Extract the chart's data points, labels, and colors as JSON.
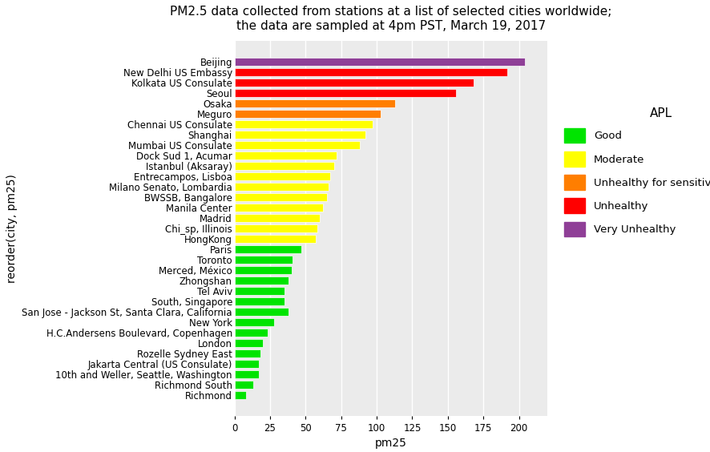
{
  "title": "PM2.5 data collected from stations at a list of selected cities worldwide;\nthe data are sampled at 4pm PST, March 19, 2017",
  "xlabel": "pm25",
  "ylabel": "reorder(city, pm25)",
  "cities": [
    "Richmond",
    "Richmond South",
    "10th and Weller, Seattle, Washington",
    "Jakarta Central (US Consulate)",
    "Rozelle Sydney East",
    "London",
    "H.C.Andersens Boulevard, Copenhagen",
    "New York",
    "San Jose - Jackson St, Santa Clara, California",
    "South, Singapore",
    "Tel Aviv",
    "Zhongshan",
    "Merced, México",
    "Toronto",
    "Paris",
    "HongKong",
    "Chi_sp, Illinois",
    "Madrid",
    "Manila Center",
    "BWSSB, Bangalore",
    "Milano Senato, Lombardia",
    "Entrecampos, Lisboa",
    "Istanbul (Aksaray)",
    "Dock Sud 1, Acumar",
    "Mumbai US Consulate",
    "Shanghai",
    "Chennai US Consulate",
    "Meguro",
    "Osaka",
    "Seoul",
    "Kolkata US Consulate",
    "New Delhi US Embassy",
    "Beijing"
  ],
  "values": [
    8,
    13,
    17,
    17,
    18,
    20,
    23,
    28,
    38,
    35,
    35,
    38,
    40,
    41,
    47,
    57,
    58,
    60,
    62,
    65,
    66,
    67,
    70,
    72,
    88,
    92,
    97,
    103,
    113,
    156,
    168,
    192,
    204
  ],
  "colors": [
    "#00e400",
    "#00e400",
    "#00e400",
    "#00e400",
    "#00e400",
    "#00e400",
    "#00e400",
    "#00e400",
    "#00e400",
    "#00e400",
    "#00e400",
    "#00e400",
    "#00e400",
    "#00e400",
    "#00e400",
    "#ffff00",
    "#ffff00",
    "#ffff00",
    "#ffff00",
    "#ffff00",
    "#ffff00",
    "#ffff00",
    "#ffff00",
    "#ffff00",
    "#ffff00",
    "#ffff00",
    "#ffff00",
    "#ff7e00",
    "#ff7e00",
    "#ff0000",
    "#ff0000",
    "#ff0000",
    "#8f3f97"
  ],
  "legend_labels": [
    "Good",
    "Moderate",
    "Unhealthy for sensitive groups",
    "Unhealthy",
    "Very Unhealthy"
  ],
  "legend_colors": [
    "#00e400",
    "#ffff00",
    "#ff7e00",
    "#ff0000",
    "#8f3f97"
  ],
  "legend_title": "APL",
  "xlim": [
    0,
    220
  ],
  "background_color": "#ebebeb",
  "grid_color": "#ffffff",
  "title_fontsize": 11,
  "axis_label_fontsize": 10,
  "tick_fontsize": 8.5,
  "fig_width": 8.87,
  "fig_height": 5.64,
  "dpi": 100
}
